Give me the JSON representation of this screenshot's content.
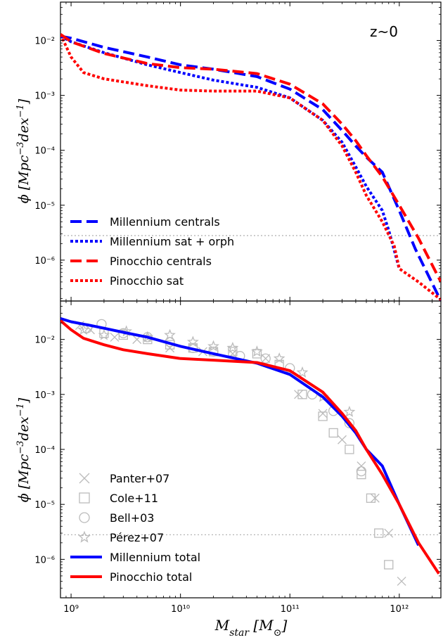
{
  "chart_data": [
    {
      "type": "line",
      "panel": "top",
      "annotation": "z~0",
      "xlabel": "",
      "ylabel": "ϕ [Mpc⁻³dex⁻¹]",
      "xscale": "log",
      "yscale": "log",
      "xlim": [
        800000000.0,
        2400000000000.0
      ],
      "ylim": [
        1.8e-07,
        0.05
      ],
      "x_ticks": [
        {
          "value": 1000000000.0,
          "label": "10⁹"
        },
        {
          "value": 10000000000.0,
          "label": "10¹⁰"
        },
        {
          "value": 100000000000.0,
          "label": "10¹¹"
        },
        {
          "value": 1000000000000.0,
          "label": "10¹²"
        }
      ],
      "y_ticks": [
        {
          "value": 1e-06,
          "label": "10⁻⁶"
        },
        {
          "value": 1e-05,
          "label": "10⁻⁵"
        },
        {
          "value": 0.0001,
          "label": "10⁻⁴"
        },
        {
          "value": 0.001,
          "label": "10⁻³"
        },
        {
          "value": 0.01,
          "label": "10⁻²"
        }
      ],
      "hline": 2.8e-06,
      "legend_position": "lower-left",
      "series": [
        {
          "name": "Millennium centrals",
          "color": "#0000ff",
          "style": "dashed",
          "x": [
            800000000.0,
            1000000000.0,
            2000000000.0,
            5000000000.0,
            10000000000.0,
            20000000000.0,
            50000000000.0,
            100000000000.0,
            200000000000.0,
            300000000000.0,
            400000000000.0,
            500000000000.0,
            700000000000.0,
            1000000000000.0,
            1400000000000.0,
            2400000000000.0
          ],
          "y": [
            0.012,
            0.011,
            0.0075,
            0.005,
            0.0036,
            0.003,
            0.0022,
            0.0013,
            0.00055,
            0.00023,
            0.00012,
            7.5e-05,
            4e-05,
            8e-06,
            1.6e-06,
            1.8e-07
          ]
        },
        {
          "name": "Millennium sat + orph",
          "color": "#0000ff",
          "style": "dotted",
          "x": [
            800000000.0,
            1000000000.0,
            2000000000.0,
            5000000000.0,
            10000000000.0,
            20000000000.0,
            50000000000.0,
            100000000000.0,
            200000000000.0,
            300000000000.0,
            400000000000.0,
            500000000000.0,
            700000000000.0,
            800000000000.0,
            900000000000.0,
            1000000000000.0
          ],
          "y": [
            0.012,
            0.0095,
            0.006,
            0.0036,
            0.0026,
            0.0019,
            0.0014,
            0.0009,
            0.00035,
            0.00014,
            5e-05,
            2.2e-05,
            8e-06,
            3.5e-06,
            1.5e-06,
            7e-07
          ]
        },
        {
          "name": "Pinocchio centrals",
          "color": "#ff0000",
          "style": "dashed",
          "x": [
            800000000.0,
            1000000000.0,
            2000000000.0,
            5000000000.0,
            10000000000.0,
            20000000000.0,
            50000000000.0,
            100000000000.0,
            200000000000.0,
            300000000000.0,
            400000000000.0,
            500000000000.0,
            700000000000.0,
            1000000000000.0,
            1500000000000.0,
            2400000000000.0
          ],
          "y": [
            0.013,
            0.0095,
            0.0058,
            0.0038,
            0.0032,
            0.003,
            0.0025,
            0.0016,
            0.0007,
            0.0003,
            0.00015,
            8e-05,
            3.3e-05,
            1e-05,
            2.5e-06,
            4e-07
          ]
        },
        {
          "name": "Pinocchio sat",
          "color": "#ff0000",
          "style": "dotted",
          "x": [
            800000000.0,
            1000000000.0,
            1300000000.0,
            2000000000.0,
            5000000000.0,
            10000000000.0,
            20000000000.0,
            50000000000.0,
            100000000000.0,
            200000000000.0,
            300000000000.0,
            400000000000.0,
            500000000000.0,
            700000000000.0,
            900000000000.0,
            1000000000000.0,
            1500000000000.0,
            2400000000000.0
          ],
          "y": [
            0.013,
            0.005,
            0.0026,
            0.002,
            0.0015,
            0.00125,
            0.0012,
            0.0012,
            0.0009,
            0.00035,
            0.00012,
            4e-05,
            1.5e-05,
            5e-06,
            1.8e-06,
            7e-07,
            4e-07,
            1.9e-07
          ]
        }
      ]
    },
    {
      "type": "line",
      "panel": "bottom",
      "xlabel": "M_star [M_⊙]",
      "ylabel": "ϕ [Mpc⁻³dex⁻¹]",
      "xscale": "log",
      "yscale": "log",
      "xlim": [
        800000000.0,
        2400000000000.0
      ],
      "ylim": [
        2e-07,
        0.05
      ],
      "x_ticks": [
        {
          "value": 1000000000.0,
          "label": "10⁹"
        },
        {
          "value": 10000000000.0,
          "label": "10¹⁰"
        },
        {
          "value": 100000000000.0,
          "label": "10¹¹"
        },
        {
          "value": 1000000000000.0,
          "label": "10¹²"
        }
      ],
      "y_ticks": [
        {
          "value": 1e-06,
          "label": "10⁻⁶"
        },
        {
          "value": 1e-05,
          "label": "10⁻⁵"
        },
        {
          "value": 0.0001,
          "label": "10⁻⁴"
        },
        {
          "value": 0.001,
          "label": "10⁻³"
        },
        {
          "value": 0.01,
          "label": "10⁻²"
        }
      ],
      "hline": 2.8e-06,
      "legend_position": "lower-left",
      "series": [
        {
          "name": "Panter+07",
          "color": "#bbbbbb",
          "marker": "x",
          "x": [
            1200000000.0,
            1500000000.0,
            2500000000.0,
            4000000000.0,
            8000000000.0,
            16000000000.0,
            30000000000.0,
            60000000000.0,
            120000000000.0,
            200000000000.0,
            300000000000.0,
            450000000000.0,
            600000000000.0,
            800000000000.0,
            1050000000000.0
          ],
          "y": [
            0.018,
            0.015,
            0.011,
            0.01,
            0.007,
            0.006,
            0.0055,
            0.0045,
            0.001,
            0.00045,
            0.00015,
            5e-05,
            1.3e-05,
            3e-06,
            4e-07
          ]
        },
        {
          "name": "Cole+11",
          "color": "#bbbbbb",
          "marker": "square",
          "x": [
            2000000000.0,
            3000000000.0,
            5000000000.0,
            8000000000.0,
            13000000000.0,
            20000000000.0,
            30000000000.0,
            50000000000.0,
            80000000000.0,
            130000000000.0,
            200000000000.0,
            250000000000.0,
            350000000000.0,
            450000000000.0,
            550000000000.0,
            650000000000.0,
            800000000000.0
          ],
          "y": [
            0.013,
            0.012,
            0.01,
            0.008,
            0.007,
            0.006,
            0.006,
            0.0055,
            0.0035,
            0.001,
            0.0004,
            0.0002,
            0.0001,
            3.5e-05,
            1.3e-05,
            3e-06,
            8e-07
          ]
        },
        {
          "name": "Bell+03",
          "color": "#bbbbbb",
          "marker": "circle",
          "x": [
            1400000000.0,
            1900000000.0,
            3000000000.0,
            5000000000.0,
            8000000000.0,
            13000000000.0,
            20000000000.0,
            35000000000.0,
            60000000000.0,
            100000000000.0,
            160000000000.0,
            250000000000.0,
            350000000000.0,
            450000000000.0
          ],
          "y": [
            0.016,
            0.019,
            0.013,
            0.011,
            0.009,
            0.007,
            0.006,
            0.005,
            0.0045,
            0.003,
            0.001,
            0.0005,
            0.0003,
            4e-05
          ]
        },
        {
          "name": "Pérez+07",
          "color": "#bbbbbb",
          "marker": "star",
          "x": [
            1300000000.0,
            2000000000.0,
            3200000000.0,
            5000000000.0,
            8000000000.0,
            13000000000.0,
            20000000000.0,
            30000000000.0,
            50000000000.0,
            80000000000.0,
            130000000000.0,
            200000000000.0,
            350000000000.0
          ],
          "y": [
            0.015,
            0.012,
            0.014,
            0.011,
            0.012,
            0.009,
            0.0075,
            0.007,
            0.006,
            0.0045,
            0.0025,
            0.0009,
            0.00048
          ]
        },
        {
          "name": "Millennium total",
          "color": "#0000ff",
          "style": "solid",
          "x": [
            800000000.0,
            1000000000.0,
            1500000000.0,
            2000000000.0,
            3000000000.0,
            5000000000.0,
            10000000000.0,
            20000000000.0,
            50000000000.0,
            100000000000.0,
            200000000000.0,
            300000000000.0,
            400000000000.0,
            500000000000.0,
            700000000000.0,
            1000000000000.0,
            1500000000000.0
          ],
          "y": [
            0.024,
            0.021,
            0.018,
            0.016,
            0.0135,
            0.011,
            0.0075,
            0.0055,
            0.0037,
            0.0023,
            0.0009,
            0.0004,
            0.0002,
            0.0001,
            5e-05,
            1e-05,
            1.8e-06
          ]
        },
        {
          "name": "Pinocchio total",
          "color": "#ff0000",
          "style": "solid",
          "x": [
            800000000.0,
            1000000000.0,
            1300000000.0,
            2000000000.0,
            3000000000.0,
            5000000000.0,
            10000000000.0,
            20000000000.0,
            50000000000.0,
            100000000000.0,
            200000000000.0,
            300000000000.0,
            400000000000.0,
            500000000000.0,
            700000000000.0,
            1000000000000.0,
            1500000000000.0,
            2300000000000.0
          ],
          "y": [
            0.022,
            0.015,
            0.0105,
            0.008,
            0.0065,
            0.0055,
            0.0045,
            0.0042,
            0.0038,
            0.0027,
            0.0011,
            0.00045,
            0.00022,
            0.0001,
            3.5e-05,
            1e-05,
            2e-06,
            5.5e-07
          ]
        }
      ]
    }
  ]
}
